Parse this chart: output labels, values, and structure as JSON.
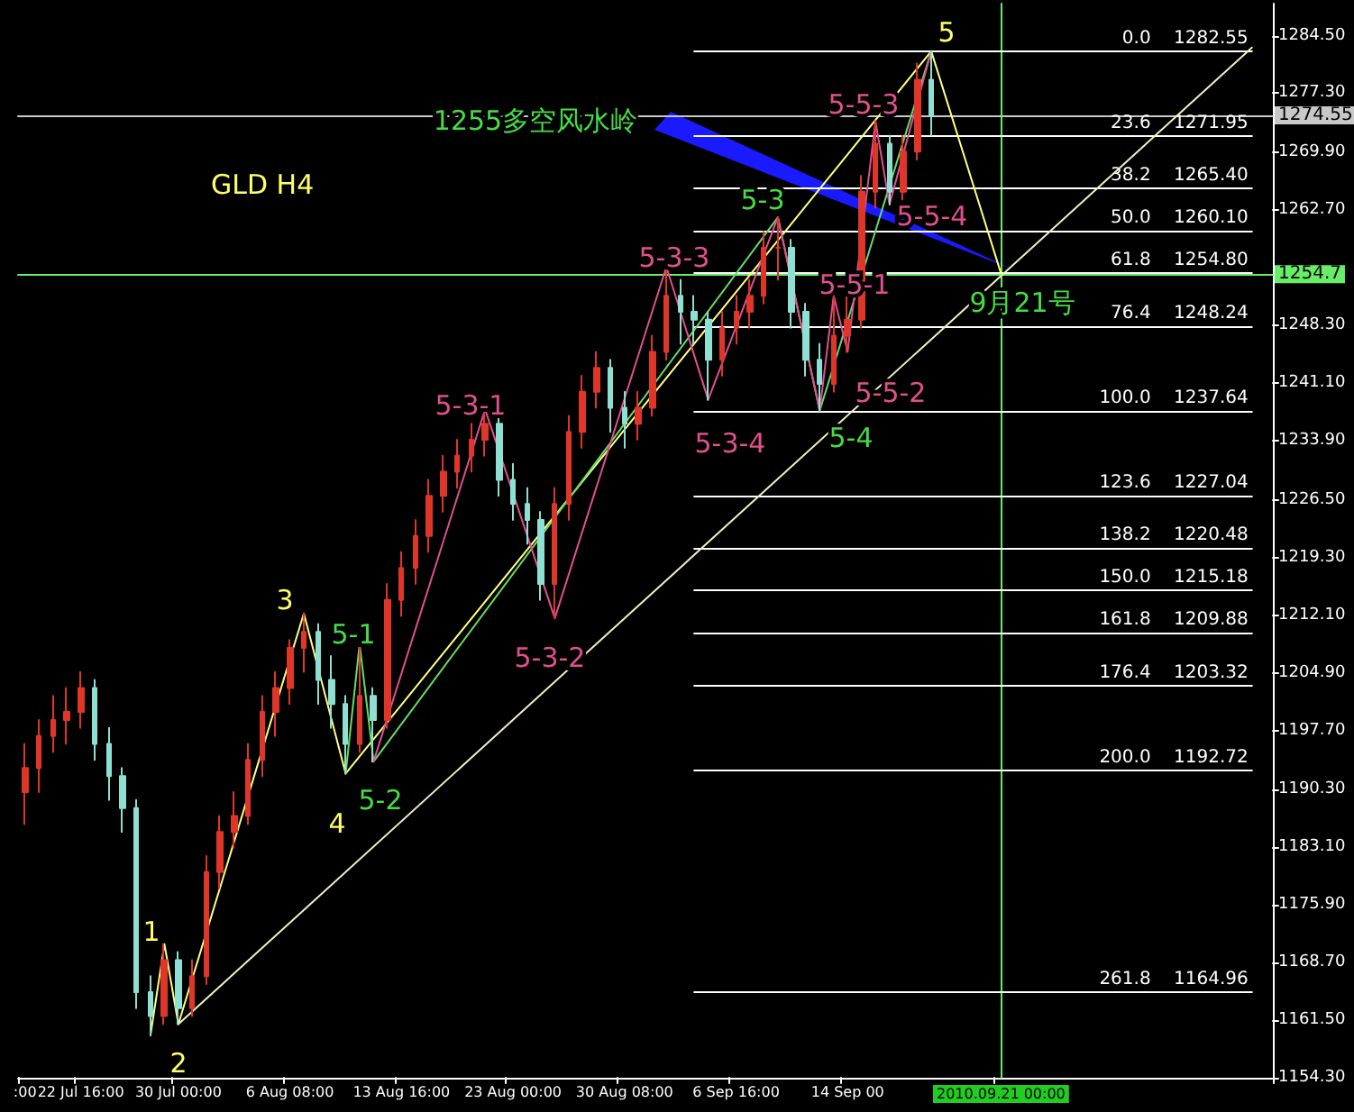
{
  "chart_data": {
    "type": "candlestick",
    "title": "GLD H4",
    "categories": [
      ":00",
      null,
      null,
      null,
      "22 Jul 16:00",
      null,
      null,
      null,
      null,
      null,
      null,
      "30 Jul 00:00",
      null,
      null,
      null,
      null,
      null,
      null,
      null,
      "6 Aug 08:00",
      null,
      null,
      null,
      null,
      null,
      null,
      null,
      "13 Aug 16:00",
      null,
      null,
      null,
      null,
      null,
      null,
      null,
      "23 Aug 00:00",
      null,
      null,
      null,
      null,
      null,
      null,
      null,
      "30 Aug 08:00",
      null,
      null,
      null,
      null,
      null,
      null,
      null,
      "6 Sep 16:00",
      null,
      null,
      null,
      null,
      null,
      null,
      null,
      "14 Sep 00",
      null,
      null,
      null,
      null,
      null,
      null,
      null,
      null,
      null,
      null,
      "2010.09.21 00:00",
      null,
      null,
      null,
      null,
      null,
      null,
      null,
      null,
      null,
      null,
      null,
      null,
      null,
      null,
      null,
      null,
      null,
      null,
      null
    ],
    "ohlc": [
      [
        1190,
        1196,
        1186,
        1193
      ],
      [
        1193,
        1199,
        1190,
        1197
      ],
      [
        1197,
        1202,
        1195,
        1199
      ],
      [
        1199,
        1203,
        1196,
        1200
      ],
      [
        1200,
        1205,
        1198,
        1203
      ],
      [
        1203,
        1204,
        1194,
        1196
      ],
      [
        1196,
        1198,
        1189,
        1192
      ],
      [
        1192,
        1193,
        1185,
        1188
      ],
      [
        1188,
        1189,
        1163,
        1165
      ],
      [
        1165,
        1167,
        1159.6,
        1162
      ],
      [
        1162,
        1171,
        1161,
        1169
      ],
      [
        1169,
        1170,
        1161,
        1163
      ],
      [
        1163,
        1169,
        1162,
        1167
      ],
      [
        1167,
        1182,
        1166,
        1180
      ],
      [
        1180,
        1187,
        1178,
        1185
      ],
      [
        1185,
        1190,
        1183,
        1187
      ],
      [
        1187,
        1196,
        1186,
        1194
      ],
      [
        1194,
        1202,
        1192,
        1200
      ],
      [
        1200,
        1205,
        1197,
        1203
      ],
      [
        1203,
        1209,
        1201,
        1208
      ],
      [
        1208,
        1212.3,
        1205,
        1210
      ],
      [
        1210,
        1211,
        1201,
        1204
      ],
      [
        1204,
        1207,
        1198,
        1201
      ],
      [
        1201,
        1202,
        1192.3,
        1196
      ],
      [
        1196,
        1208.5,
        1195,
        1202
      ],
      [
        1202,
        1203,
        1193.8,
        1199
      ],
      [
        1199,
        1216,
        1198,
        1214
      ],
      [
        1214,
        1220,
        1212,
        1218
      ],
      [
        1218,
        1224,
        1216,
        1222
      ],
      [
        1222,
        1229,
        1220,
        1227
      ],
      [
        1227,
        1232,
        1225,
        1230
      ],
      [
        1230,
        1234,
        1228,
        1232
      ],
      [
        1232,
        1236,
        1230,
        1234
      ],
      [
        1234,
        1237.8,
        1232,
        1236
      ],
      [
        1236,
        1237,
        1227,
        1229
      ],
      [
        1229,
        1231,
        1224,
        1226
      ],
      [
        1226,
        1228,
        1221,
        1224
      ],
      [
        1224,
        1225,
        1214,
        1216
      ],
      [
        1216,
        1228,
        1211.7,
        1226
      ],
      [
        1226,
        1237,
        1224,
        1235
      ],
      [
        1235,
        1242,
        1233,
        1240
      ],
      [
        1240,
        1245,
        1238,
        1243
      ],
      [
        1243,
        1244,
        1235,
        1238
      ],
      [
        1238,
        1240,
        1233,
        1236
      ],
      [
        1236,
        1240,
        1234,
        1238
      ],
      [
        1238,
        1247,
        1237,
        1245
      ],
      [
        1245,
        1255.6,
        1244,
        1252
      ],
      [
        1252,
        1254,
        1246,
        1250
      ],
      [
        1250,
        1252,
        1246,
        1249
      ],
      [
        1249,
        1250,
        1239,
        1244
      ],
      [
        1244,
        1250,
        1242,
        1248
      ],
      [
        1248,
        1252,
        1246,
        1250
      ],
      [
        1250,
        1254,
        1248,
        1252
      ],
      [
        1252,
        1260,
        1251,
        1258
      ],
      [
        1258,
        1261.8,
        1254,
        1258
      ],
      [
        1258,
        1259,
        1248,
        1250
      ],
      [
        1250,
        1251,
        1242,
        1244
      ],
      [
        1244,
        1246,
        1237.64,
        1241
      ],
      [
        1241,
        1252,
        1240,
        1247
      ],
      [
        1247,
        1252,
        1245,
        1249
      ],
      [
        1249,
        1267,
        1248,
        1265
      ],
      [
        1265,
        1273.8,
        1263,
        1271
      ],
      [
        1271,
        1272,
        1263.4,
        1265
      ],
      [
        1265,
        1272,
        1264,
        1270
      ],
      [
        1270,
        1281,
        1269,
        1279
      ],
      [
        1279,
        1282.55,
        1272,
        1274.55
      ],
      null,
      null,
      null,
      null,
      null,
      null,
      null,
      null,
      null,
      null,
      null,
      null,
      null,
      null,
      null,
      null,
      null,
      null,
      null,
      null,
      null,
      null,
      null,
      null
    ],
    "colors": [
      "#e0362a",
      "#e0362a",
      "#e0362a",
      "#e0362a",
      "#e0362a",
      "#8ee0d2",
      "#8ee0d2",
      "#8ee0d2",
      "#8ee0d2",
      "#8ee0d2",
      "#e0362a",
      "#8ee0d2",
      "#e0362a",
      "#e0362a",
      "#e0362a",
      "#e0362a",
      "#e0362a",
      "#e0362a",
      "#e0362a",
      "#e0362a",
      "#e0362a",
      "#8ee0d2",
      "#8ee0d2",
      "#8ee0d2",
      "#e0362a",
      "#8ee0d2",
      "#e0362a",
      "#e0362a",
      "#e0362a",
      "#e0362a",
      "#e0362a",
      "#e0362a",
      "#e0362a",
      "#e0362a",
      "#8ee0d2",
      "#8ee0d2",
      "#8ee0d2",
      "#8ee0d2",
      "#e0362a",
      "#e0362a",
      "#e0362a",
      "#e0362a",
      "#8ee0d2",
      "#8ee0d2",
      "#e0362a",
      "#e0362a",
      "#e0362a",
      "#8ee0d2",
      "#8ee0d2",
      "#8ee0d2",
      "#e0362a",
      "#e0362a",
      "#e0362a",
      "#e0362a",
      "#e0362a",
      "#8ee0d2",
      "#8ee0d2",
      "#8ee0d2",
      "#e0362a",
      "#e0362a",
      "#e0362a",
      "#e0362a",
      "#8ee0d2",
      "#e0362a",
      "#e0362a",
      "#8ee0d2",
      null,
      null,
      null,
      null,
      null,
      null,
      null,
      null,
      null,
      null,
      null,
      null,
      null,
      null,
      null,
      null,
      null,
      null,
      null,
      null,
      null,
      null,
      null,
      null
    ],
    "series": [
      {
        "type": "line",
        "color": "#ffff80",
        "values": [
          null,
          null,
          null,
          null,
          null,
          null,
          null,
          null,
          null,
          1159.6,
          1171,
          1161,
          null,
          null,
          null,
          null,
          null,
          null,
          null,
          null,
          1212.3,
          null,
          null,
          1192.3,
          null,
          null,
          null,
          null,
          null,
          null,
          null,
          null,
          null,
          null,
          null,
          null,
          null,
          null,
          null,
          null,
          null,
          null,
          null,
          null,
          null,
          null,
          null,
          null,
          null,
          null,
          null,
          null,
          null,
          null,
          null,
          null,
          null,
          null,
          null,
          null,
          null,
          null,
          null,
          null,
          null,
          1282.55,
          null,
          null,
          null,
          null,
          1254.8,
          null,
          null,
          null,
          null,
          null,
          null,
          null,
          null,
          null,
          null,
          null,
          null,
          null,
          null,
          null,
          null,
          null,
          null,
          null
        ]
      },
      {
        "type": "line",
        "color": "#66dd66",
        "values": [
          null,
          null,
          null,
          null,
          null,
          null,
          null,
          null,
          null,
          null,
          null,
          null,
          null,
          null,
          null,
          null,
          null,
          null,
          null,
          null,
          null,
          null,
          null,
          1192.3,
          1208.5,
          1193.8,
          null,
          null,
          null,
          null,
          null,
          null,
          null,
          null,
          null,
          null,
          null,
          null,
          null,
          null,
          null,
          null,
          null,
          null,
          null,
          null,
          null,
          null,
          null,
          null,
          null,
          null,
          null,
          null,
          1261.8,
          null,
          null,
          1237.64,
          null,
          null,
          null,
          null,
          null,
          null,
          null,
          1282.55,
          null,
          null,
          null,
          null,
          null,
          null,
          null,
          null,
          null,
          null,
          null,
          null,
          null,
          null,
          null,
          null,
          null,
          null,
          null,
          null,
          null,
          null,
          null,
          null
        ]
      },
      {
        "type": "line",
        "color": "#e05090",
        "values": [
          null,
          null,
          null,
          null,
          null,
          null,
          null,
          null,
          null,
          null,
          null,
          null,
          null,
          null,
          null,
          null,
          null,
          null,
          null,
          null,
          null,
          null,
          null,
          null,
          null,
          1193.8,
          null,
          null,
          null,
          null,
          null,
          null,
          null,
          1237.8,
          null,
          null,
          null,
          null,
          1211.7,
          null,
          null,
          null,
          null,
          null,
          null,
          null,
          1255.6,
          null,
          null,
          1239,
          null,
          null,
          null,
          null,
          1261.8,
          null,
          null,
          1237.64,
          1252,
          1245,
          null,
          1273.8,
          1263.4,
          null,
          null,
          1282.55,
          null,
          null,
          null,
          null,
          null,
          null,
          null,
          null,
          null,
          null,
          null,
          null,
          null,
          null,
          null,
          null,
          null,
          null,
          null,
          null,
          null,
          null,
          null,
          null
        ]
      },
      {
        "type": "line",
        "color": "#f0f0c0",
        "values": [
          null,
          null,
          null,
          null,
          null,
          null,
          null,
          null,
          null,
          null,
          null,
          1161,
          null,
          null,
          null,
          null,
          null,
          null,
          null,
          null,
          null,
          null,
          null,
          null,
          null,
          null,
          null,
          null,
          null,
          null,
          null,
          null,
          null,
          null,
          null,
          null,
          null,
          null,
          null,
          null,
          null,
          null,
          null,
          null,
          null,
          null,
          null,
          null,
          null,
          null,
          null,
          null,
          null,
          null,
          null,
          null,
          null,
          null,
          null,
          null,
          null,
          null,
          null,
          null,
          null,
          null,
          null,
          null,
          null,
          null,
          null,
          null,
          null,
          null,
          null,
          null,
          null,
          null,
          null,
          null,
          null,
          null,
          null,
          null,
          null,
          null,
          null,
          null,
          1283,
          null
        ]
      }
    ],
    "ylim": [
      1154.3,
      1288.5
    ],
    "yticks": [
      {
        "value": 1154.3,
        "label": "1154.30"
      },
      {
        "value": 1161.5,
        "label": "1161.50"
      },
      {
        "value": 1168.7,
        "label": "1168.70"
      },
      {
        "value": 1175.9,
        "label": "1175.90"
      },
      {
        "value": 1183.1,
        "label": "1183.10"
      },
      {
        "value": 1190.3,
        "label": "1190.30"
      },
      {
        "value": 1197.7,
        "label": "1197.70"
      },
      {
        "value": 1204.9,
        "label": "1204.90"
      },
      {
        "value": 1212.1,
        "label": "1212.10"
      },
      {
        "value": 1219.3,
        "label": "1219.30"
      },
      {
        "value": 1226.5,
        "label": "1226.50"
      },
      {
        "value": 1233.9,
        "label": "1233.90"
      },
      {
        "value": 1241.1,
        "label": "1241.10"
      },
      {
        "value": 1248.3,
        "label": "1248.30"
      },
      {
        "value": 1262.7,
        "label": "1262.70"
      },
      {
        "value": 1269.9,
        "label": "1269.90"
      },
      {
        "value": 1277.3,
        "label": "1277.30"
      },
      {
        "value": 1284.5,
        "label": "1284.50"
      }
    ],
    "ref_lines": [
      {
        "axis": "y",
        "value": 1274.55,
        "label": "1274.55",
        "color": "#c8c8c8"
      },
      {
        "axis": "y",
        "value": 1254.7,
        "label": "1254.7",
        "color": "#66ee66"
      },
      {
        "axis": "x",
        "value": "2010.09.21 00:00",
        "color": "#66ee66"
      },
      {
        "axis": "y",
        "value": 1282.55,
        "label": "0.0    1282.55",
        "color": "#ffffff"
      },
      {
        "axis": "y",
        "value": 1271.95,
        "label": "23.6    1271.95",
        "color": "#ffffff"
      },
      {
        "axis": "y",
        "value": 1265.4,
        "label": "38.2    1265.40",
        "color": "#ffffff"
      },
      {
        "axis": "y",
        "value": 1260.1,
        "label": "50.0    1260.10",
        "color": "#ffffff"
      },
      {
        "axis": "y",
        "value": 1254.8,
        "label": "61.8    1254.80",
        "color": "#ffffff"
      },
      {
        "axis": "y",
        "value": 1248.24,
        "label": "76.4    1248.24",
        "color": "#ffffff"
      },
      {
        "axis": "y",
        "value": 1237.64,
        "label": "100.0    1237.64",
        "color": "#ffffff"
      },
      {
        "axis": "y",
        "value": 1227.04,
        "label": "123.6    1227.04",
        "color": "#ffffff"
      },
      {
        "axis": "y",
        "value": 1220.48,
        "label": "138.2    1220.48",
        "color": "#ffffff"
      },
      {
        "axis": "y",
        "value": 1215.18,
        "label": "150.0    1215.18",
        "color": "#ffffff"
      },
      {
        "axis": "y",
        "value": 1209.88,
        "label": "161.8    1209.88",
        "color": "#ffffff"
      },
      {
        "axis": "y",
        "value": 1203.32,
        "label": "176.4    1203.32",
        "color": "#ffffff"
      },
      {
        "axis": "y",
        "value": 1192.72,
        "label": "200.0    1192.72",
        "color": "#ffffff"
      },
      {
        "axis": "y",
        "value": 1164.96,
        "label": "261.8    1164.96",
        "color": "#ffffff"
      }
    ],
    "annotations": [
      "1255多空风水岭",
      "9月21号",
      "1",
      "2",
      "3",
      "4",
      "5",
      "5-1",
      "5-2",
      "5-3",
      "5-4",
      "5-3-1",
      "5-3-2",
      "5-3-3",
      "5-3-4",
      "5-5-1",
      "5-5-2",
      "5-5-3",
      "5-5-4"
    ],
    "marker": "none",
    "line_style": "solid",
    "grid": false
  }
}
